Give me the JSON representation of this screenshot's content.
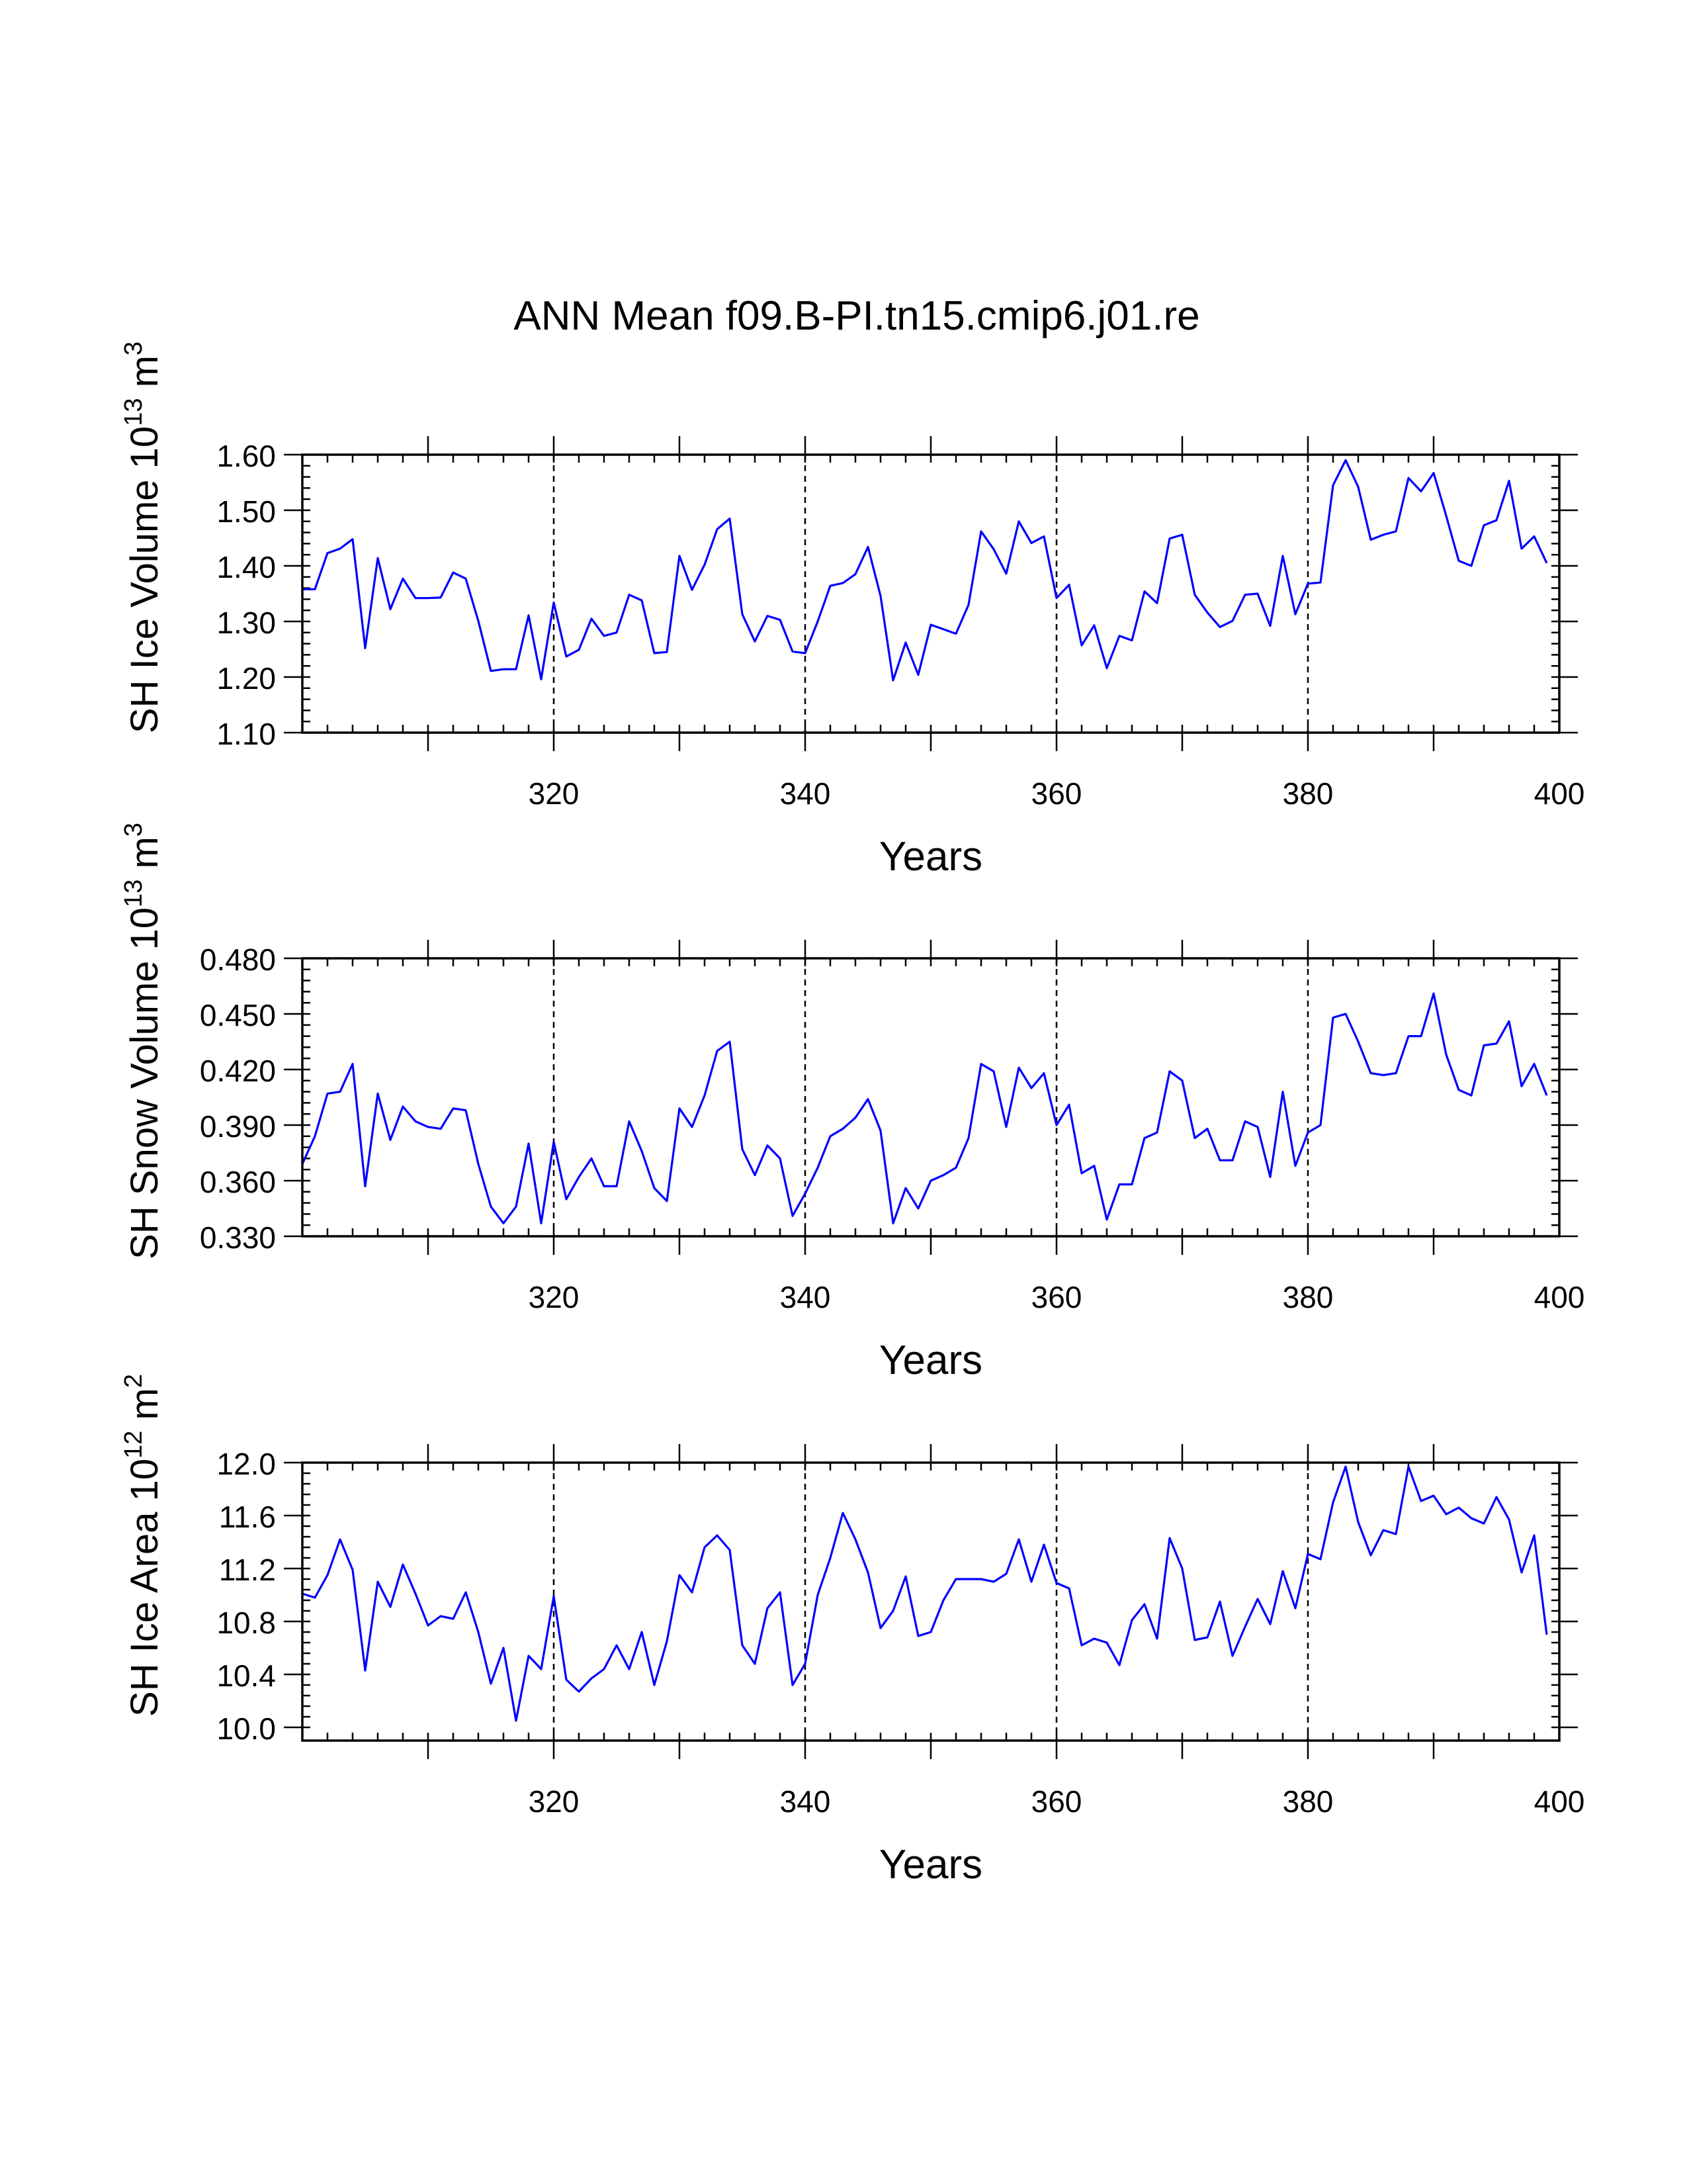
{
  "title": "ANN Mean f09.B-PI.tn15.cmip6.j01.re",
  "line_color": "#0000ff",
  "chart_data": [
    {
      "type": "line",
      "ylabel_main": "SH Ice Volume 10",
      "ylabel_exp": "13",
      "ylabel_unit": " m",
      "ylabel_unit_exp": "3",
      "xlabel": "Years",
      "xlim": [
        300,
        400
      ],
      "ylim": [
        1.1,
        1.6
      ],
      "yticks": [
        "1.10",
        "1.20",
        "1.30",
        "1.40",
        "1.50",
        "1.60"
      ],
      "xticks": [
        "320",
        "340",
        "360",
        "380",
        "400"
      ],
      "grid": "vertical dashed at 320, 340, 360, 380",
      "x_start": 300,
      "series": [
        {
          "values": [
            1.358,
            1.358,
            1.423,
            1.431,
            1.448,
            1.252,
            1.414,
            1.322,
            1.377,
            1.342,
            1.342,
            1.343,
            1.388,
            1.377,
            1.301,
            1.211,
            1.214,
            1.214,
            1.311,
            1.196,
            1.334,
            1.237,
            1.249,
            1.305,
            1.274,
            1.28,
            1.348,
            1.338,
            1.243,
            1.245,
            1.418,
            1.357,
            1.402,
            1.466,
            1.485,
            1.313,
            1.264,
            1.31,
            1.303,
            1.246,
            1.243,
            1.3,
            1.364,
            1.369,
            1.385,
            1.434,
            1.346,
            1.194,
            1.262,
            1.204,
            1.294,
            1.286,
            1.278,
            1.33,
            1.462,
            1.43,
            1.386,
            1.48,
            1.441,
            1.453,
            1.342,
            1.366,
            1.257,
            1.293,
            1.216,
            1.274,
            1.266,
            1.354,
            1.333,
            1.449,
            1.456,
            1.348,
            1.316,
            1.29,
            1.301,
            1.348,
            1.35,
            1.292,
            1.418,
            1.313,
            1.368,
            1.37,
            1.545,
            1.59,
            1.542,
            1.447,
            1.456,
            1.462,
            1.558,
            1.534,
            1.567,
            1.49,
            1.409,
            1.4,
            1.473,
            1.482,
            1.553,
            1.431,
            1.453,
            1.405
          ]
        }
      ]
    },
    {
      "type": "line",
      "ylabel_main": "SH Snow Volume 10",
      "ylabel_exp": "13",
      "ylabel_unit": " m",
      "ylabel_unit_exp": "3",
      "xlabel": "Years",
      "xlim": [
        300,
        400
      ],
      "ylim": [
        0.33,
        0.48
      ],
      "yticks": [
        "0.330",
        "0.360",
        "0.390",
        "0.420",
        "0.450",
        "0.480"
      ],
      "xticks": [
        "320",
        "340",
        "360",
        "380",
        "400"
      ],
      "grid": "vertical dashed at 320, 340, 360, 380",
      "x_start": 300,
      "series": [
        {
          "values": [
            0.369,
            0.384,
            0.407,
            0.408,
            0.423,
            0.357,
            0.407,
            0.382,
            0.4,
            0.392,
            0.389,
            0.388,
            0.399,
            0.398,
            0.369,
            0.346,
            0.337,
            0.346,
            0.38,
            0.337,
            0.381,
            0.35,
            0.362,
            0.372,
            0.357,
            0.357,
            0.392,
            0.376,
            0.356,
            0.349,
            0.399,
            0.389,
            0.406,
            0.43,
            0.435,
            0.377,
            0.363,
            0.379,
            0.372,
            0.341,
            0.353,
            0.367,
            0.384,
            0.388,
            0.394,
            0.404,
            0.387,
            0.337,
            0.356,
            0.345,
            0.36,
            0.363,
            0.367,
            0.383,
            0.423,
            0.419,
            0.389,
            0.421,
            0.41,
            0.418,
            0.39,
            0.401,
            0.364,
            0.368,
            0.339,
            0.358,
            0.358,
            0.383,
            0.386,
            0.419,
            0.414,
            0.383,
            0.388,
            0.371,
            0.371,
            0.392,
            0.389,
            0.362,
            0.408,
            0.368,
            0.386,
            0.39,
            0.448,
            0.45,
            0.435,
            0.418,
            0.417,
            0.418,
            0.438,
            0.438,
            0.461,
            0.428,
            0.409,
            0.406,
            0.433,
            0.434,
            0.446,
            0.411,
            0.423,
            0.406
          ]
        }
      ]
    },
    {
      "type": "line",
      "ylabel_main": "SH Ice Area 10",
      "ylabel_exp": "12",
      "ylabel_unit": " m",
      "ylabel_unit_exp": "2",
      "xlabel": "Years",
      "xlim": [
        300,
        400
      ],
      "ylim": [
        9.9,
        12.0
      ],
      "yticks": [
        "10.0",
        "10.4",
        "10.8",
        "11.2",
        "11.6",
        "12.0"
      ],
      "ytick_values": [
        10.0,
        10.4,
        10.8,
        11.2,
        11.6,
        12.0
      ],
      "xticks": [
        "320",
        "340",
        "360",
        "380",
        "400"
      ],
      "grid": "vertical dashed at 320, 340, 360, 380",
      "x_start": 300,
      "series": [
        {
          "values": [
            11.01,
            10.98,
            11.15,
            11.42,
            11.19,
            10.43,
            11.1,
            10.91,
            11.23,
            11.01,
            10.77,
            10.84,
            10.82,
            11.02,
            10.72,
            10.33,
            10.6,
            10.05,
            10.54,
            10.44,
            10.99,
            10.36,
            10.27,
            10.37,
            10.44,
            10.62,
            10.44,
            10.72,
            10.32,
            10.65,
            11.15,
            11.02,
            11.36,
            11.45,
            11.34,
            10.62,
            10.48,
            10.9,
            11.02,
            10.32,
            10.48,
            11.0,
            11.28,
            11.62,
            11.42,
            11.17,
            10.75,
            10.88,
            11.14,
            10.69,
            10.72,
            10.96,
            11.12,
            11.12,
            11.12,
            11.1,
            11.16,
            11.42,
            11.1,
            11.38,
            11.09,
            11.05,
            10.62,
            10.67,
            10.64,
            10.47,
            10.81,
            10.93,
            10.67,
            11.43,
            11.2,
            10.66,
            10.68,
            10.95,
            10.54,
            10.76,
            10.97,
            10.78,
            11.18,
            10.9,
            11.31,
            11.27,
            11.7,
            11.97,
            11.55,
            11.3,
            11.49,
            11.46,
            11.97,
            11.71,
            11.75,
            11.61,
            11.66,
            11.58,
            11.54,
            11.74,
            11.57,
            11.17,
            11.45,
            10.7
          ]
        }
      ]
    }
  ]
}
